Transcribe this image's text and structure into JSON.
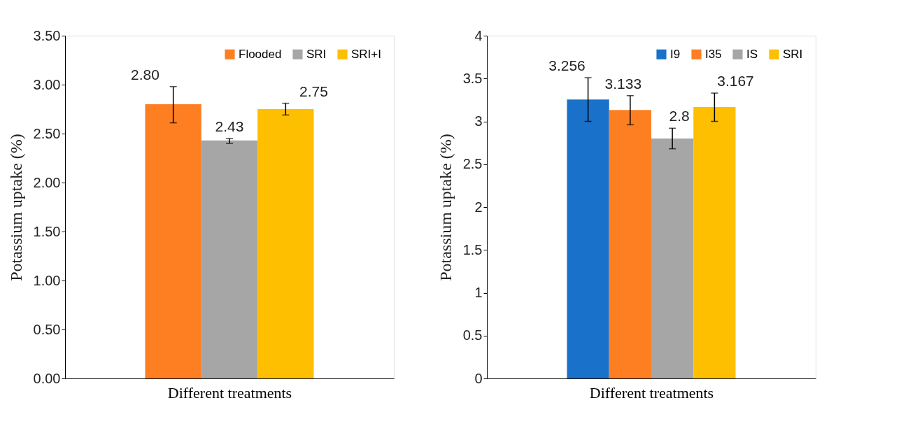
{
  "chart_data": [
    {
      "type": "bar",
      "xlabel": "Different treatments",
      "ylabel": "Potassium uptake (%)",
      "categories": [
        null
      ],
      "series": [
        {
          "name": "Flooded",
          "color": "#fd7f22",
          "values": [
            2.8
          ],
          "errors": [
            [
              2.61,
              2.98
            ]
          ],
          "value_labels": [
            "2.80"
          ]
        },
        {
          "name": "SRI",
          "color": "#a6a6a6",
          "values": [
            2.43
          ],
          "errors": [
            [
              2.4,
              2.45
            ]
          ],
          "value_labels": [
            "2.43"
          ]
        },
        {
          "name": "SRI+I",
          "color": "#fdbf00",
          "values": [
            2.75
          ],
          "errors": [
            [
              2.69,
              2.81
            ]
          ],
          "value_labels": [
            "2.75"
          ]
        }
      ],
      "ylim": [
        0,
        3.5
      ],
      "yticks": [
        {
          "value": 0,
          "label": "0.00"
        },
        {
          "value": 0.5,
          "label": "0.50"
        },
        {
          "value": 1,
          "label": "1.00"
        },
        {
          "value": 1.5,
          "label": "1.50"
        },
        {
          "value": 2,
          "label": "2.00"
        },
        {
          "value": 2.5,
          "label": "2.50"
        },
        {
          "value": 3,
          "label": "3.00"
        },
        {
          "value": 3.5,
          "label": "3.50"
        }
      ],
      "legend": "top right",
      "grid": false
    },
    {
      "type": "bar",
      "xlabel": "Different treatments",
      "ylabel": "Potassium uptake (%)",
      "categories": [
        null
      ],
      "series": [
        {
          "name": "I9",
          "color": "#1a71c9",
          "values": [
            3.256
          ],
          "errors": [
            [
              3.0,
              3.51
            ]
          ]
        },
        {
          "name": "I35",
          "color": "#fd7f22",
          "values": [
            3.133
          ],
          "errors": [
            [
              2.96,
              3.3
            ]
          ]
        },
        {
          "name": "IS",
          "color": "#a6a6a6",
          "values": [
            2.8
          ],
          "errors": [
            [
              2.68,
              2.92
            ]
          ]
        },
        {
          "name": "SRI",
          "color": "#fdbf00",
          "values": [
            3.167
          ],
          "errors": [
            [
              3.0,
              3.33
            ]
          ]
        }
      ],
      "ylim": [
        0,
        4
      ],
      "yticks": [
        0,
        0.5,
        1,
        1.5,
        2,
        2.5,
        3,
        3.5,
        4
      ],
      "data_labels": true,
      "legend": "top right",
      "grid": false
    }
  ]
}
